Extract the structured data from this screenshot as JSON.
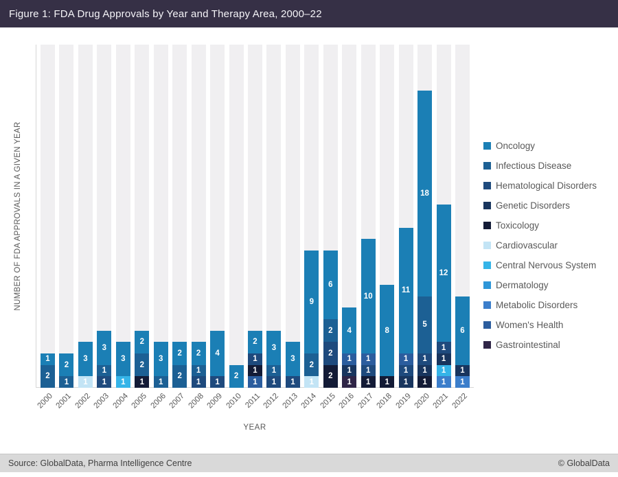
{
  "header": {
    "title": "Figure 1: FDA Drug Approvals by Year and Therapy Area, 2000–22"
  },
  "footer": {
    "source": "Source: GlobalData, Pharma Intelligence Centre",
    "copyright": "© GlobalData"
  },
  "chart_data": {
    "type": "bar",
    "stacked": true,
    "title": "Figure 1: FDA Drug Approvals by Year and Therapy Area, 2000–22",
    "xlabel": "YEAR",
    "ylabel": "NUMBER OF FDA APPROVALS IN A GIVEN YEAR",
    "ylim": [
      0,
      30
    ],
    "grid": false,
    "legend_position": "right",
    "plot_background_bands": "#f0eff1",
    "legend": [
      "Oncology",
      "Infectious Disease",
      "Hematological Disorders",
      "Genetic Disorders",
      "Toxicology",
      "Cardiovascular",
      "Central Nervous System",
      "Dermatology",
      "Metabolic Disorders",
      "Women's Health",
      "Gastrointestinal"
    ],
    "series_colors": {
      "Oncology": "#1b7fb5",
      "Infectious Disease": "#1c6094",
      "Hematological Disorders": "#1e4a7d",
      "Genetic Disorders": "#18355e",
      "Toxicology": "#131b36",
      "Cardiovascular": "#c3e4f5",
      "Central Nervous System": "#35b4e8",
      "Dermatology": "#2e96d8",
      "Metabolic Disorders": "#3b7ecb",
      "Women's Health": "#2b5d9e",
      "Gastrointestinal": "#2f2547"
    },
    "categories": [
      "2000",
      "2001",
      "2002",
      "2003",
      "2004",
      "2005",
      "2006",
      "2007",
      "2008",
      "2009",
      "2010",
      "2011",
      "2012",
      "2013",
      "2014",
      "2015",
      "2016",
      "2017",
      "2018",
      "2019",
      "2020",
      "2021",
      "2022"
    ],
    "segment_order": "top_to_bottom",
    "bars": [
      {
        "year": "2000",
        "total": 3,
        "segments": [
          {
            "series": "Oncology",
            "value": 1
          },
          {
            "series": "Infectious Disease",
            "value": 2
          }
        ]
      },
      {
        "year": "2001",
        "total": 3,
        "segments": [
          {
            "series": "Oncology",
            "value": 2
          },
          {
            "series": "Infectious Disease",
            "value": 1
          }
        ]
      },
      {
        "year": "2002",
        "total": 4,
        "segments": [
          {
            "series": "Oncology",
            "value": 3
          },
          {
            "series": "Cardiovascular",
            "value": 1
          }
        ]
      },
      {
        "year": "2003",
        "total": 5,
        "segments": [
          {
            "series": "Oncology",
            "value": 3
          },
          {
            "series": "Infectious Disease",
            "value": 1
          },
          {
            "series": "Hematological Disorders",
            "value": 1
          }
        ]
      },
      {
        "year": "2004",
        "total": 4,
        "segments": [
          {
            "series": "Oncology",
            "value": 3
          },
          {
            "series": "Central Nervous System",
            "value": 1
          }
        ]
      },
      {
        "year": "2005",
        "total": 5,
        "segments": [
          {
            "series": "Oncology",
            "value": 2
          },
          {
            "series": "Infectious Disease",
            "value": 2
          },
          {
            "series": "Toxicology",
            "value": 1
          }
        ]
      },
      {
        "year": "2006",
        "total": 4,
        "segments": [
          {
            "series": "Oncology",
            "value": 3
          },
          {
            "series": "Infectious Disease",
            "value": 1
          }
        ]
      },
      {
        "year": "2007",
        "total": 4,
        "segments": [
          {
            "series": "Oncology",
            "value": 2
          },
          {
            "series": "Infectious Disease",
            "value": 2
          }
        ]
      },
      {
        "year": "2008",
        "total": 4,
        "segments": [
          {
            "series": "Oncology",
            "value": 2
          },
          {
            "series": "Infectious Disease",
            "value": 1
          },
          {
            "series": "Hematological Disorders",
            "value": 1
          }
        ]
      },
      {
        "year": "2009",
        "total": 5,
        "segments": [
          {
            "series": "Oncology",
            "value": 4
          },
          {
            "series": "Hematological Disorders",
            "value": 1
          }
        ]
      },
      {
        "year": "2010",
        "total": 2,
        "segments": [
          {
            "series": "Oncology",
            "value": 2
          }
        ]
      },
      {
        "year": "2011",
        "total": 5,
        "segments": [
          {
            "series": "Oncology",
            "value": 2
          },
          {
            "series": "Hematological Disorders",
            "value": 1
          },
          {
            "series": "Toxicology",
            "value": 1
          },
          {
            "series": "Women's Health",
            "value": 1
          }
        ]
      },
      {
        "year": "2012",
        "total": 5,
        "segments": [
          {
            "series": "Oncology",
            "value": 3
          },
          {
            "series": "Infectious Disease",
            "value": 1
          },
          {
            "series": "Hematological Disorders",
            "value": 1
          }
        ]
      },
      {
        "year": "2013",
        "total": 4,
        "segments": [
          {
            "series": "Oncology",
            "value": 3
          },
          {
            "series": "Hematological Disorders",
            "value": 1
          }
        ]
      },
      {
        "year": "2014",
        "total": 12,
        "segments": [
          {
            "series": "Oncology",
            "value": 9
          },
          {
            "series": "Infectious Disease",
            "value": 2
          },
          {
            "series": "Cardiovascular",
            "value": 1
          }
        ]
      },
      {
        "year": "2015",
        "total": 12,
        "segments": [
          {
            "series": "Oncology",
            "value": 6
          },
          {
            "series": "Infectious Disease",
            "value": 2
          },
          {
            "series": "Hematological Disorders",
            "value": 2
          },
          {
            "series": "Toxicology",
            "value": 2
          }
        ]
      },
      {
        "year": "2016",
        "total": 7,
        "segments": [
          {
            "series": "Oncology",
            "value": 4
          },
          {
            "series": "Women's Health",
            "value": 1
          },
          {
            "series": "Genetic Disorders",
            "value": 1
          },
          {
            "series": "Gastrointestinal",
            "value": 1
          }
        ]
      },
      {
        "year": "2017",
        "total": 13,
        "segments": [
          {
            "series": "Oncology",
            "value": 10
          },
          {
            "series": "Women's Health",
            "value": 1
          },
          {
            "series": "Hematological Disorders",
            "value": 1
          },
          {
            "series": "Toxicology",
            "value": 1
          }
        ]
      },
      {
        "year": "2018",
        "total": 9,
        "segments": [
          {
            "series": "Oncology",
            "value": 8
          },
          {
            "series": "Toxicology",
            "value": 1
          }
        ]
      },
      {
        "year": "2019",
        "total": 14,
        "segments": [
          {
            "series": "Oncology",
            "value": 11
          },
          {
            "series": "Women's Health",
            "value": 1
          },
          {
            "series": "Hematological Disorders",
            "value": 1
          },
          {
            "series": "Genetic Disorders",
            "value": 1
          }
        ]
      },
      {
        "year": "2020",
        "total": 26,
        "segments": [
          {
            "series": "Oncology",
            "value": 18
          },
          {
            "series": "Infectious Disease",
            "value": 5
          },
          {
            "series": "Hematological Disorders",
            "value": 1
          },
          {
            "series": "Genetic Disorders",
            "value": 1
          },
          {
            "series": "Toxicology",
            "value": 1
          }
        ]
      },
      {
        "year": "2021",
        "total": 16,
        "segments": [
          {
            "series": "Oncology",
            "value": 12
          },
          {
            "series": "Hematological Disorders",
            "value": 1
          },
          {
            "series": "Genetic Disorders",
            "value": 1
          },
          {
            "series": "Central Nervous System",
            "value": 1
          },
          {
            "series": "Metabolic Disorders",
            "value": 1
          }
        ]
      },
      {
        "year": "2022",
        "total": 8,
        "segments": [
          {
            "series": "Oncology",
            "value": 6
          },
          {
            "series": "Genetic Disorders",
            "value": 1
          },
          {
            "series": "Metabolic Disorders",
            "value": 1
          }
        ]
      }
    ]
  }
}
